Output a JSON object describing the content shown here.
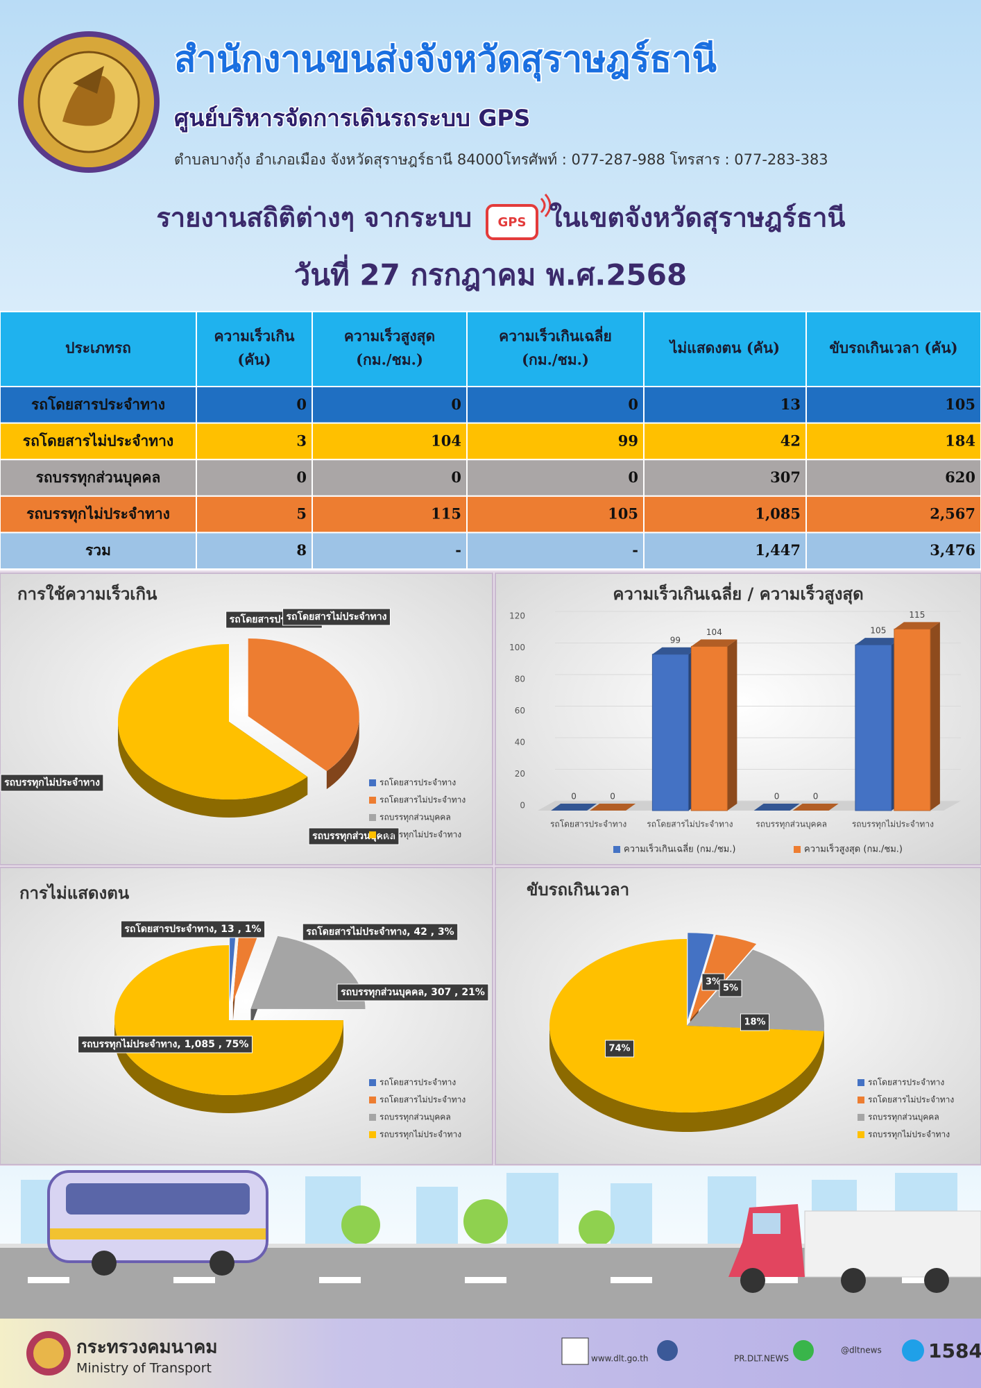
{
  "header": {
    "title": "สำนักงานขนส่งจังหวัดสุราษฎร์ธานี",
    "subtitle": "ศูนย์บริหารจัดการเดินรถระบบ GPS",
    "address": "ตำบลบางกุ้ง อำเภอเมือง จังหวัดสุราษฎร์ธานี 84000โทรศัพท์ : 077-287-988 โทรสาร : 077-283-383",
    "report_title": "รายงานสถิติต่างๆ จากระบบ",
    "gps": "GPS",
    "report_area": "ในเขตจังหวัดสุราษฎร์ธานี",
    "date": "วันที่ 27 กรกฎาคม พ.ศ.2568"
  },
  "table": {
    "header": [
      [
        "ประเภทรถ"
      ],
      [
        "ความเร็วเกิน",
        "(คัน)"
      ],
      [
        "ความเร็วสูงสุด",
        "(กม./ชม.)"
      ],
      [
        "ความเร็วเกินเฉลี่ย",
        "(กม./ชม.)"
      ],
      [
        "ไม่แสดงตน (คัน)"
      ],
      [
        "ขับรถเกินเวลา (คัน)"
      ]
    ],
    "header_color": "#1fb2ee",
    "rows": [
      [
        "รถโดยสารประจำทาง",
        "0",
        "0",
        "0",
        "13",
        "105"
      ],
      [
        "รถโดยสารไม่ประจำทาง",
        "3",
        "104",
        "99",
        "42",
        "184"
      ],
      [
        "รถบรรทุกส่วนบุคคล",
        "0",
        "0",
        "0",
        "307",
        "620"
      ],
      [
        "รถบรรทุกไม่ประจำทาง",
        "5",
        "115",
        "105",
        "1,085",
        "2,567"
      ],
      [
        "รวม",
        "8",
        "-",
        "-",
        "1,447",
        "3,476"
      ]
    ],
    "row_colors": [
      "#1f6fc2",
      "#ffc000",
      "#aaa6a6",
      "#ed7d31",
      "#9dc3e6"
    ]
  },
  "chart_data": [
    {
      "type": "pie",
      "title": "การใช้ความเร็วเกิน",
      "categories": [
        "รถโดยสารประจำทาง",
        "รถโดยสารไม่ประจำทาง",
        "รถบรรทุกส่วนบุคคล",
        "รถบรรทุกไม่ประจำทาง"
      ],
      "values": [
        0,
        3,
        0,
        5
      ],
      "colors": [
        "#4472c4",
        "#ed7d31",
        "#a5a5a5",
        "#ffc000"
      ],
      "legend": "bottom-right"
    },
    {
      "type": "bar",
      "title": "ความเร็วเกินเฉลี่ย / ความเร็วสูงสุด",
      "categories": [
        "รถโดยสารประจำทาง",
        "รถโดยสารไม่ประจำทาง",
        "รถบรรทุกส่วนบุคคล",
        "รถบรรทุกไม่ประจำทาง"
      ],
      "series": [
        {
          "name": "ความเร็วเกินเฉลี่ย (กม./ชม.)",
          "color": "#4472c4",
          "values": [
            0,
            99,
            0,
            105
          ]
        },
        {
          "name": "ความเร็วสูงสุด (กม./ชม.)",
          "color": "#ed7d31",
          "values": [
            0,
            104,
            0,
            115
          ]
        }
      ],
      "ylim": [
        0,
        120
      ],
      "yticks": [
        0,
        20,
        40,
        60,
        80,
        100,
        120
      ],
      "grid": true,
      "legend": "bottom"
    },
    {
      "type": "pie",
      "title": "การไม่แสดงตน",
      "categories": [
        "รถโดยสารประจำทาง",
        "รถโดยสารไม่ประจำทาง",
        "รถบรรทุกส่วนบุคคล",
        "รถบรรทุกไม่ประจำทาง"
      ],
      "values": [
        13,
        42,
        307,
        1085
      ],
      "value_labels": [
        "รถโดยสารประจำทาง, 13 , 1%",
        "รถโดยสารไม่ประจำทาง, 42 , 3%",
        "รถบรรทุกส่วนบุคคล, 307 , 21%",
        "รถบรรทุกไม่ประจำทาง, 1,085 , 75%"
      ],
      "colors": [
        "#4472c4",
        "#ed7d31",
        "#a5a5a5",
        "#ffc000"
      ],
      "legend": "bottom-right"
    },
    {
      "type": "pie",
      "title": "ขับรถเกินเวลา",
      "categories": [
        "รถโดยสารประจำทาง",
        "รถโดยสารไม่ประจำทาง",
        "รถบรรทุกส่วนบุคคล",
        "รถบรรทุกไม่ประจำทาง"
      ],
      "values": [
        3,
        5,
        18,
        74
      ],
      "value_labels": [
        "3%",
        "5%",
        "18%",
        "74%"
      ],
      "colors": [
        "#4472c4",
        "#ed7d31",
        "#a5a5a5",
        "#ffc000"
      ],
      "legend": "bottom-right"
    }
  ],
  "footer": {
    "ministry_th": "กระทรวงคมนาคม",
    "ministry_en": "Ministry of Transport",
    "website": "www.dlt.go.th",
    "facebook": "PR.DLT.NEWS",
    "line": "@dltnews",
    "hotline": "1584"
  }
}
